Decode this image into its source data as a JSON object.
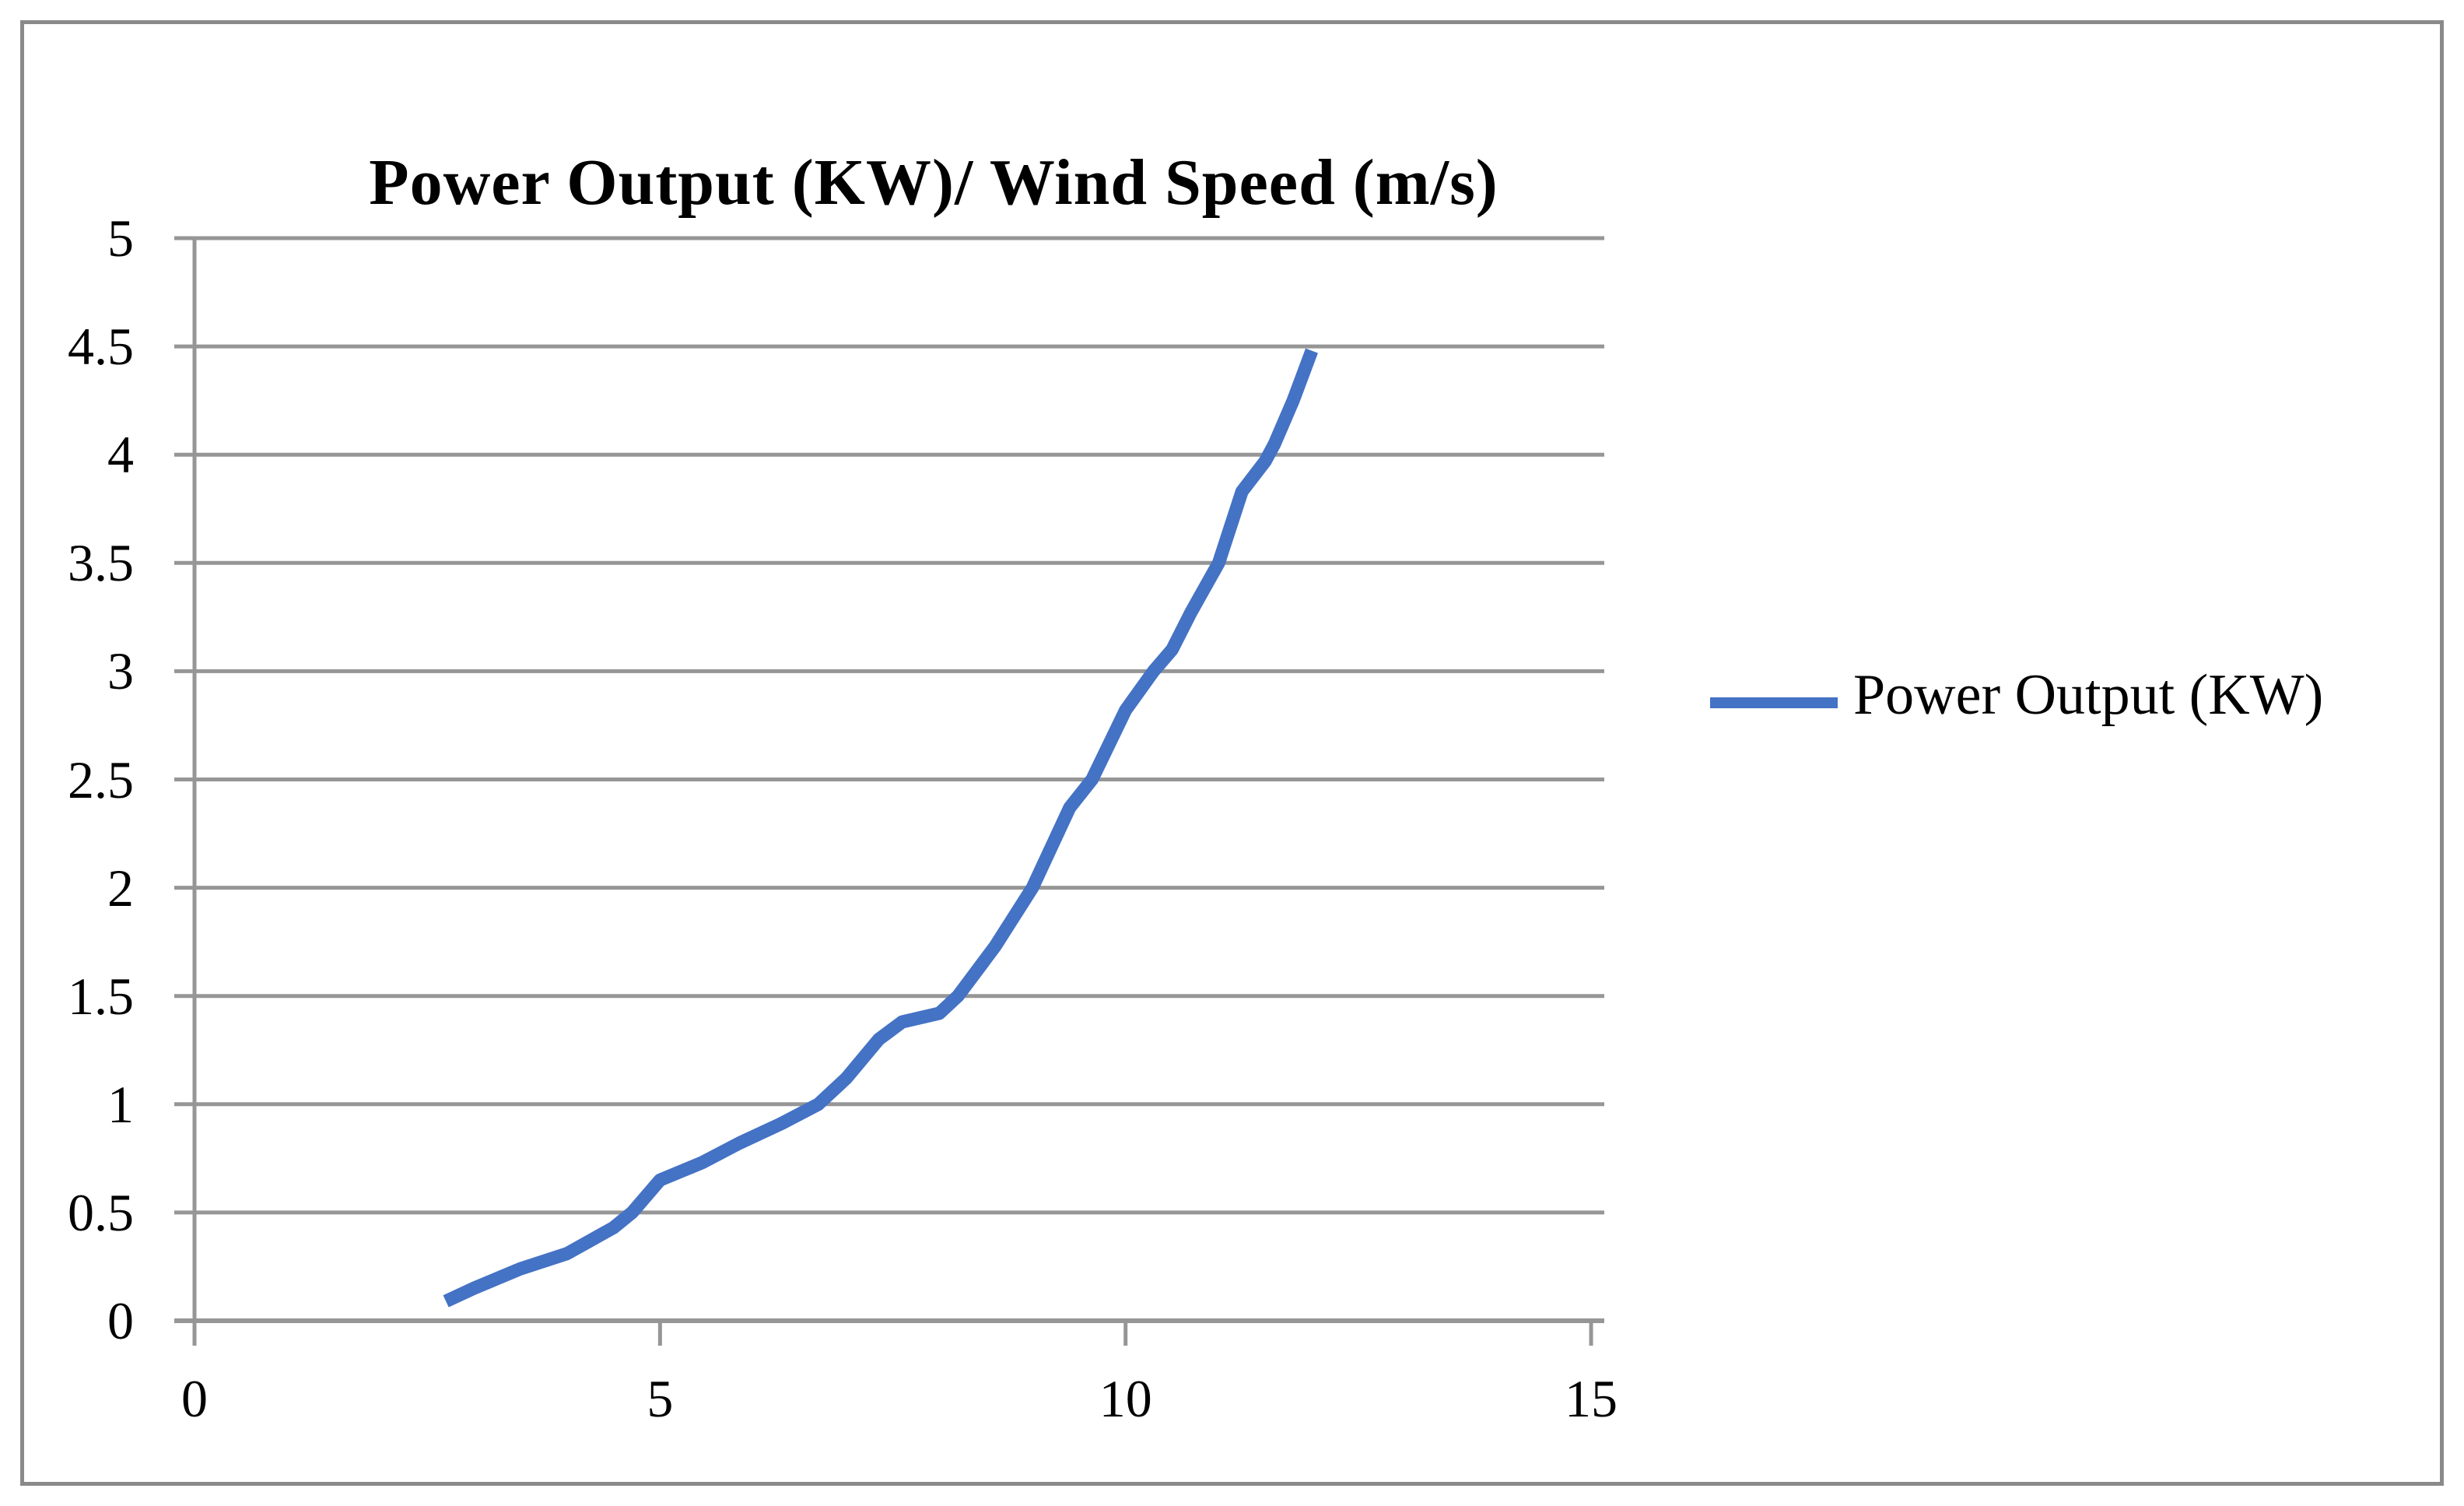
{
  "title": "Power Output (KW)/ Wind Speed (m/s)",
  "legend": {
    "label": "Power Output (KW)",
    "swatch_color": "#4472C4"
  },
  "colors": {
    "line": "#4472C4",
    "grid": "#969696",
    "axis": "#969696",
    "frame": "#8a8a8a",
    "text": "#000000",
    "background": "#ffffff"
  },
  "chart_data": {
    "type": "line",
    "title": "Power Output (KW)/ Wind Speed (m/s)",
    "xlabel": "",
    "ylabel": "",
    "xlim": [
      0,
      15
    ],
    "ylim": [
      0,
      5
    ],
    "x_ticks": [
      0,
      5,
      10,
      15
    ],
    "y_ticks": [
      0,
      0.5,
      1,
      1.5,
      2,
      2.5,
      3,
      3.5,
      4,
      4.5,
      5
    ],
    "grid": true,
    "legend_position": "center-right",
    "series": [
      {
        "name": "Power Output (KW)",
        "color": "#4472C4",
        "points": [
          [
            2.7,
            0.09
          ],
          [
            3.0,
            0.15
          ],
          [
            3.5,
            0.24
          ],
          [
            4.0,
            0.31
          ],
          [
            4.5,
            0.43
          ],
          [
            4.7,
            0.5
          ],
          [
            5.0,
            0.65
          ],
          [
            5.45,
            0.73
          ],
          [
            5.85,
            0.82
          ],
          [
            6.3,
            0.91
          ],
          [
            6.7,
            1.0
          ],
          [
            7.0,
            1.12
          ],
          [
            7.35,
            1.3
          ],
          [
            7.6,
            1.38
          ],
          [
            8.0,
            1.42
          ],
          [
            8.2,
            1.5
          ],
          [
            8.6,
            1.73
          ],
          [
            9.0,
            2.0
          ],
          [
            9.4,
            2.37
          ],
          [
            9.64,
            2.5
          ],
          [
            10.0,
            2.82
          ],
          [
            10.3,
            3.0
          ],
          [
            10.5,
            3.1
          ],
          [
            10.7,
            3.27
          ],
          [
            11.0,
            3.5
          ],
          [
            11.25,
            3.83
          ],
          [
            11.5,
            3.97
          ],
          [
            11.6,
            4.05
          ],
          [
            11.8,
            4.25
          ],
          [
            12.0,
            4.48
          ]
        ]
      }
    ]
  }
}
